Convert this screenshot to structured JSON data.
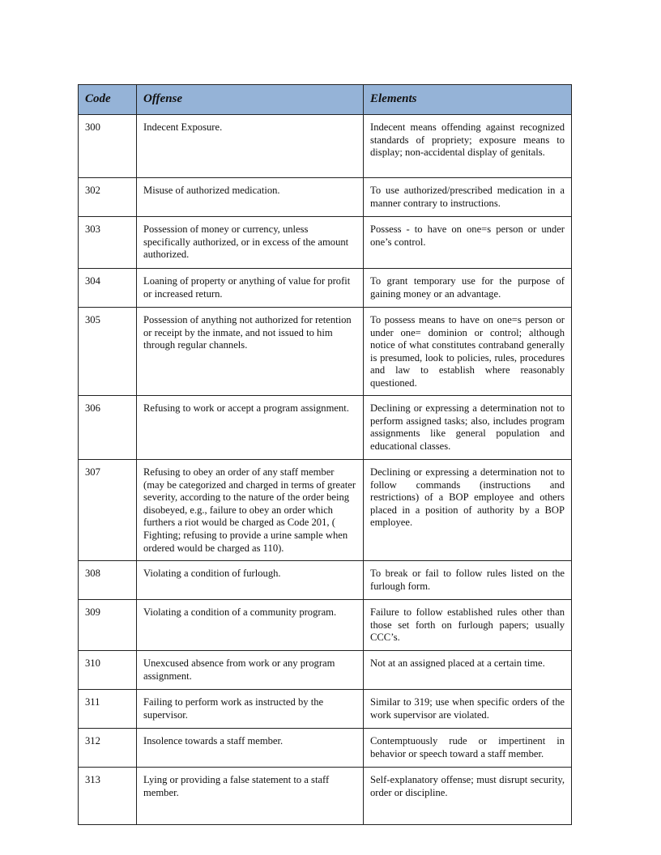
{
  "headers": {
    "code": "Code",
    "offense": "Offense",
    "elements": "Elements"
  },
  "rows": [
    {
      "code": "300",
      "offense": "Indecent Exposure.",
      "elements": "Indecent means offending against recognized standards of propriety; exposure means to display; non-accidental display of genitals."
    },
    {
      "code": "302",
      "offense": "Misuse of authorized medication.",
      "elements": "To use authorized/prescribed medication in a manner contrary to instructions."
    },
    {
      "code": "303",
      "offense": "Possession of money or currency, unless specifically authorized, or in excess of the amount authorized.",
      "elements": "Possess - to have on one=s person or under one’s control."
    },
    {
      "code": "304",
      "offense": "Loaning of property or anything of value for profit or increased return.",
      "elements": "To grant temporary use for the purpose of gaining money or an advantage."
    },
    {
      "code": "305",
      "offense": "Possession of anything not authorized for retention or receipt by the inmate, and not issued to him through regular channels.",
      "elements": "To possess means to have on one=s person or under one= dominion or control; although notice of what constitutes contraband generally is presumed, look to policies, rules, procedures and law to establish where reasonably questioned."
    },
    {
      "code": "306",
      "offense": "Refusing to work or accept a program assignment.",
      "elements": "Declining or expressing a determination not to perform assigned tasks; also, includes program assignments like general population and educational classes."
    },
    {
      "code": "307",
      "offense": "Refusing to obey an order of any staff member (may be categorized and charged in terms of greater severity, according to the nature of the order being disobeyed, e.g., failure to obey an order which furthers a riot would be charged as Code 201, ( Fighting; refusing to provide a urine sample when ordered would be charged as 110).",
      "elements": "Declining or expressing a determination not to follow commands (instructions and restrictions) of a BOP  employee and others placed in a position of authority by a BOP employee."
    },
    {
      "code": "308",
      "offense": "Violating a condition of furlough.",
      "elements": "To break or fail to follow rules listed on the furlough form."
    },
    {
      "code": "309",
      "offense": "Violating a condition of a community program.",
      "elements": "Failure to follow established rules other than those set forth on furlough papers; usually CCC’s."
    },
    {
      "code": "310",
      "offense": "Unexcused absence from work or any program assignment.",
      "elements": "Not at an assigned placed at a certain time."
    },
    {
      "code": "311",
      "offense": "Failing to perform work as instructed by the supervisor.",
      "elements": "Similar to 319; use when specific orders of the work supervisor are violated."
    },
    {
      "code": "312",
      "offense": "Insolence towards a staff member.",
      "elements": "Contemptuously rude or impertinent in behavior or speech toward a staff member."
    },
    {
      "code": "313",
      "offense": "Lying or providing a false statement to a staff member.",
      "elements": "Self-explanatory offense; must disrupt security, order or discipline."
    }
  ]
}
